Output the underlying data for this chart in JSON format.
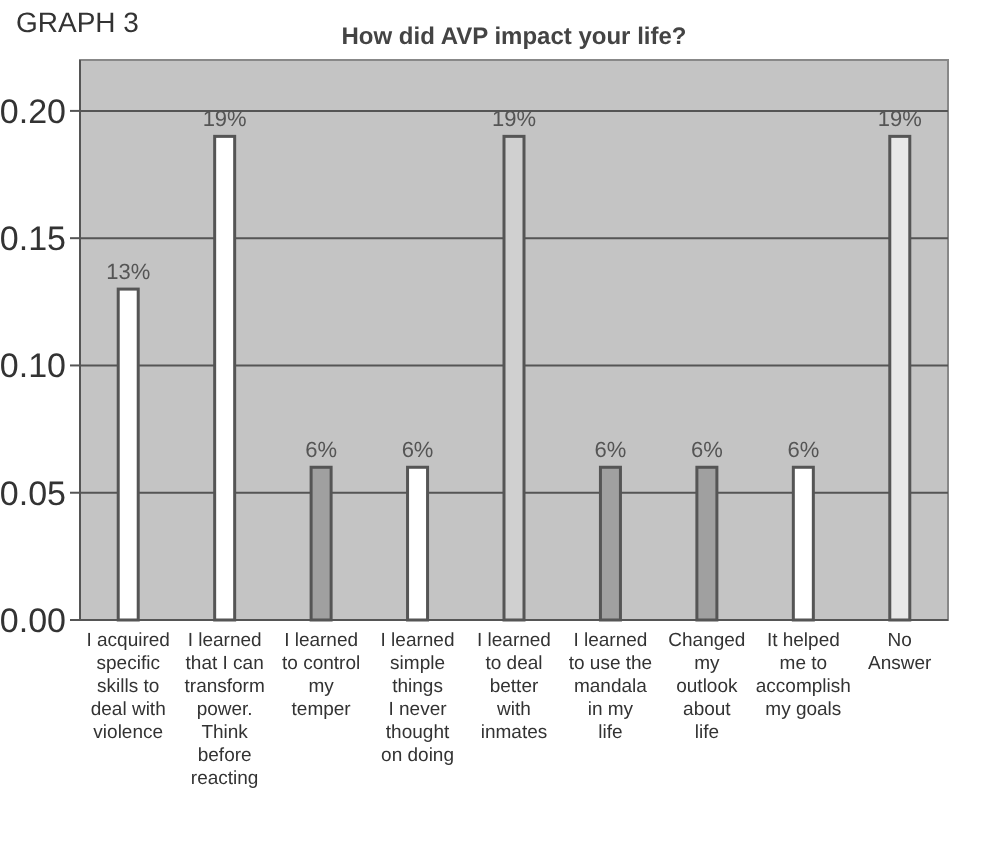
{
  "chart_data": {
    "type": "bar",
    "title": "How did AVP impact your life?",
    "annotations": [
      "GRAPH 3"
    ],
    "categories": [
      "I acquired\nspecific\nskills to\ndeal with\nviolence",
      "I learned\nthat I can\ntransform\npower.\nThink\nbefore\nreacting",
      "I learned\nto control\nmy\ntemper",
      "I learned\nsimple\nthings\nI never\nthought\non doing",
      "I learned\nto deal\nbetter\nwith\ninmates",
      "I learned\nto use the\nmandala\nin my\nlife",
      "Changed\nmy\noutlook\nabout\nlife",
      "It helped\nme to\naccomplish\nmy goals",
      "No\nAnswer"
    ],
    "values": [
      0.13,
      0.19,
      0.06,
      0.06,
      0.19,
      0.06,
      0.06,
      0.06,
      0.19
    ],
    "value_labels": [
      "13%",
      "19%",
      "6%",
      "6%",
      "19%",
      "6%",
      "6%",
      "6%",
      "19%"
    ],
    "colors": [
      "#ffffff",
      "#ffffff",
      "#a0a0a0",
      "#ffffff",
      "#d0d0d0",
      "#a0a0a0",
      "#a0a0a0",
      "#ffffff",
      "#e8e8e8"
    ],
    "ylim": [
      0,
      0.22
    ],
    "yticks": [
      {
        "value": 0,
        "label": "0.00"
      },
      {
        "value": 0.05,
        "label": "0.05"
      },
      {
        "value": 0.1,
        "label": "0.10"
      },
      {
        "value": 0.15,
        "label": "0.15"
      },
      {
        "value": 0.2,
        "label": "0.20"
      }
    ],
    "grid": "y"
  }
}
